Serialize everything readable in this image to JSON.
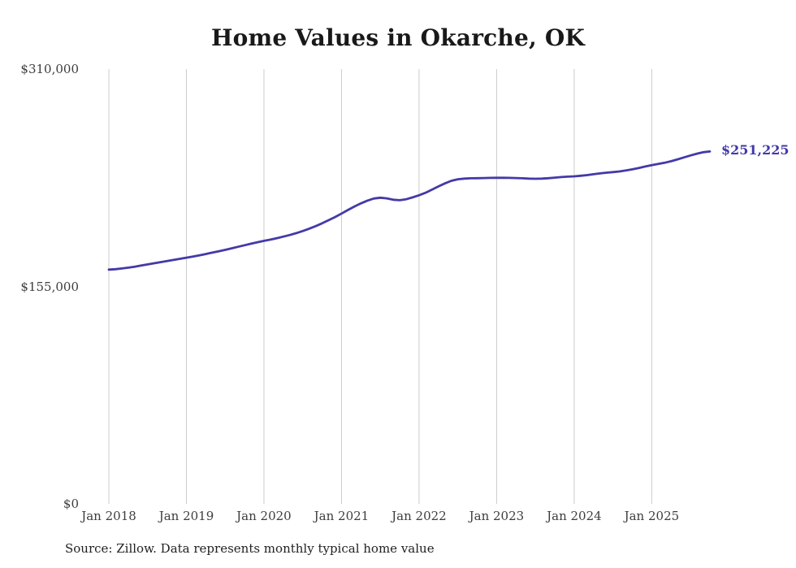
{
  "chart_data": {
    "type": "line",
    "title": "Home Values in Okarche, OK",
    "source_note": "Source: Zillow. Data represents monthly typical home value",
    "end_label": "$251,225",
    "latest_value": 251225,
    "line_color": "#433aa8",
    "grid_color": "#cccccc",
    "tick_text_color": "#3d3d3d",
    "title_color": "#191919",
    "ylim": [
      0,
      310000
    ],
    "grid": "vertical-only",
    "legend": "none",
    "y_ticks": [
      {
        "label": "$0",
        "value": 0
      },
      {
        "label": "$155,000",
        "value": 155000
      },
      {
        "label": "$310,000",
        "value": 310000
      }
    ],
    "x_ticks": [
      {
        "label": "Jan 2018",
        "month_index": 0
      },
      {
        "label": "Jan 2019",
        "month_index": 12
      },
      {
        "label": "Jan 2020",
        "month_index": 24
      },
      {
        "label": "Jan 2021",
        "month_index": 36
      },
      {
        "label": "Jan 2022",
        "month_index": 48
      },
      {
        "label": "Jan 2023",
        "month_index": 60
      },
      {
        "label": "Jan 2024",
        "month_index": 72
      },
      {
        "label": "Jan 2025",
        "month_index": 84
      }
    ],
    "series": [
      {
        "name": "Typical home value",
        "start_month": "2018-01",
        "end_month": "2025-10",
        "values": [
          167000,
          167300,
          167800,
          168400,
          169100,
          169900,
          170700,
          171500,
          172300,
          173100,
          173900,
          174700,
          175500,
          176300,
          177200,
          178100,
          179100,
          180100,
          181100,
          182200,
          183300,
          184400,
          185500,
          186500,
          187500,
          188400,
          189400,
          190500,
          191700,
          193000,
          194500,
          196200,
          198000,
          200000,
          202200,
          204500,
          207000,
          209500,
          212000,
          214200,
          216200,
          217700,
          218300,
          217800,
          216800,
          216500,
          217200,
          218500,
          220000,
          221800,
          224000,
          226300,
          228500,
          230300,
          231400,
          231900,
          232100,
          232200,
          232300,
          232400,
          232500,
          232500,
          232400,
          232300,
          232100,
          231900,
          231800,
          231900,
          232200,
          232600,
          233000,
          233300,
          233500,
          233900,
          234400,
          235000,
          235600,
          236100,
          236500,
          237000,
          237700,
          238500,
          239500,
          240500,
          241500,
          242300,
          243200,
          244300,
          245600,
          247000,
          248400,
          249700,
          250700,
          251225
        ]
      }
    ]
  }
}
